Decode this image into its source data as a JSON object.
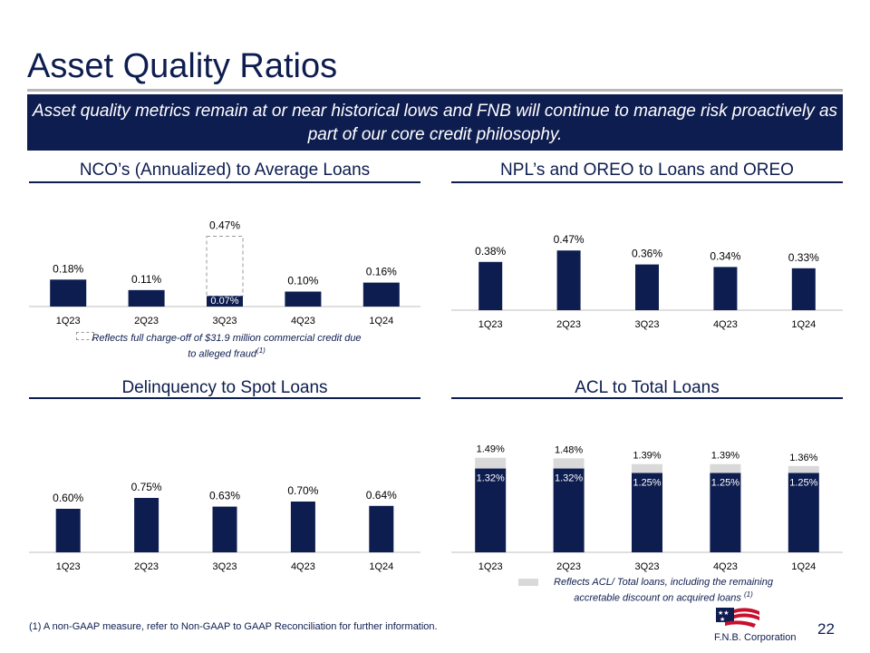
{
  "page": {
    "title": "Asset Quality Ratios",
    "banner": "Asset quality metrics remain at or near historical lows and FNB will continue to manage risk proactively as part of our core credit philosophy.",
    "footnote": "(1) A non-GAAP measure, refer to Non-GAAP to GAAP Reconciliation for further information.",
    "page_number": "22",
    "logo_text": "F.N.B. Corporation",
    "colors": {
      "navy": "#0e1d4f",
      "light_gray": "#d9d9d9",
      "dashed_gray": "#9a9a9a",
      "axis": "#bfbfbf"
    }
  },
  "chart_data": [
    {
      "id": "nco",
      "type": "bar",
      "title": "NCO’s (Annualized) to Average Loans",
      "categories": [
        "1Q23",
        "2Q23",
        "3Q23",
        "4Q23",
        "1Q24"
      ],
      "series": [
        {
          "values": [
            0.18,
            0.11,
            0.07,
            0.1,
            0.16
          ],
          "labels": [
            "0.18%",
            "0.11%",
            "0.07%",
            "0.10%",
            "0.16%"
          ]
        }
      ],
      "highlight": {
        "category": "3Q23",
        "value": 0.47,
        "label": "0.47%",
        "style": "dashed outline"
      },
      "note": "Reflects full charge-off of $31.9 million commercial credit due to alleged fraud",
      "note_sup": "(1)"
    },
    {
      "id": "npl",
      "type": "bar",
      "title": "NPL’s and OREO to Loans and OREO",
      "categories": [
        "1Q23",
        "2Q23",
        "3Q23",
        "4Q23",
        "1Q24"
      ],
      "series": [
        {
          "values": [
            0.38,
            0.47,
            0.36,
            0.34,
            0.33
          ],
          "labels": [
            "0.38%",
            "0.47%",
            "0.36%",
            "0.34%",
            "0.33%"
          ]
        }
      ]
    },
    {
      "id": "delinq",
      "type": "bar",
      "title": "Delinquency to Spot Loans",
      "categories": [
        "1Q23",
        "2Q23",
        "3Q23",
        "4Q23",
        "1Q24"
      ],
      "series": [
        {
          "values": [
            0.6,
            0.75,
            0.63,
            0.7,
            0.64
          ],
          "labels": [
            "0.60%",
            "0.75%",
            "0.63%",
            "0.70%",
            "0.64%"
          ]
        }
      ]
    },
    {
      "id": "acl",
      "type": "bar",
      "title": "ACL to Total Loans",
      "categories": [
        "1Q23",
        "2Q23",
        "3Q23",
        "4Q23",
        "1Q24"
      ],
      "series": [
        {
          "values": [
            1.32,
            1.32,
            1.25,
            1.25,
            1.25
          ],
          "labels": [
            "1.32%",
            "1.32%",
            "1.25%",
            "1.25%",
            "1.25%"
          ]
        },
        {
          "values": [
            1.49,
            1.48,
            1.39,
            1.39,
            1.36
          ],
          "labels": [
            "1.49%",
            "1.48%",
            "1.39%",
            "1.39%",
            "1.36%"
          ]
        }
      ],
      "note": "Reflects ACL/ Total loans, including the remaining accretable discount on acquired loans",
      "note_sup": "(1)"
    }
  ]
}
